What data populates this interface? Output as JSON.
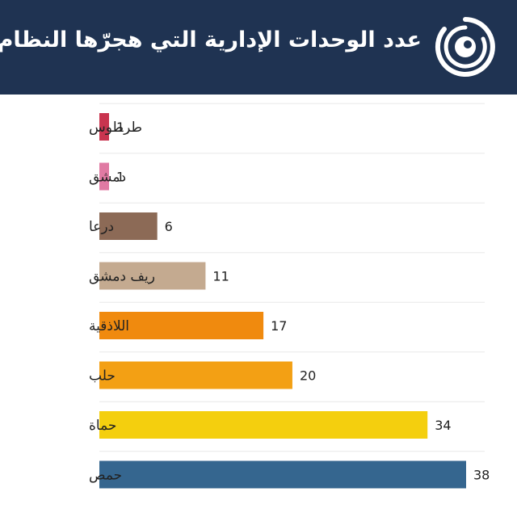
{
  "title": "عدد الوحدات الإدارية التي هجرّها النظام",
  "logo": {
    "icon": "concentric-circles-logo-icon",
    "color": "#ffffff"
  },
  "colors": {
    "header_bg": "#1f3352",
    "grid": "#e8e8e8"
  },
  "chart_data": {
    "type": "bar",
    "orientation": "horizontal",
    "title": "عدد الوحدات الإدارية التي هجرّها النظام",
    "xlabel": "",
    "ylabel": "",
    "xlim": [
      0,
      38
    ],
    "grid": true,
    "categories": [
      "طرطوس",
      "دمشق",
      "درعا",
      "ريف دمشق",
      "اللاذقية",
      "حلب",
      "حماة",
      "حمص"
    ],
    "values": [
      1,
      1,
      6,
      11,
      17,
      20,
      34,
      38
    ],
    "bar_colors": [
      "#c9344f",
      "#e07aa3",
      "#8c6a56",
      "#c4aa90",
      "#f08a0e",
      "#f3a014",
      "#f4cf0e",
      "#35668f"
    ]
  }
}
